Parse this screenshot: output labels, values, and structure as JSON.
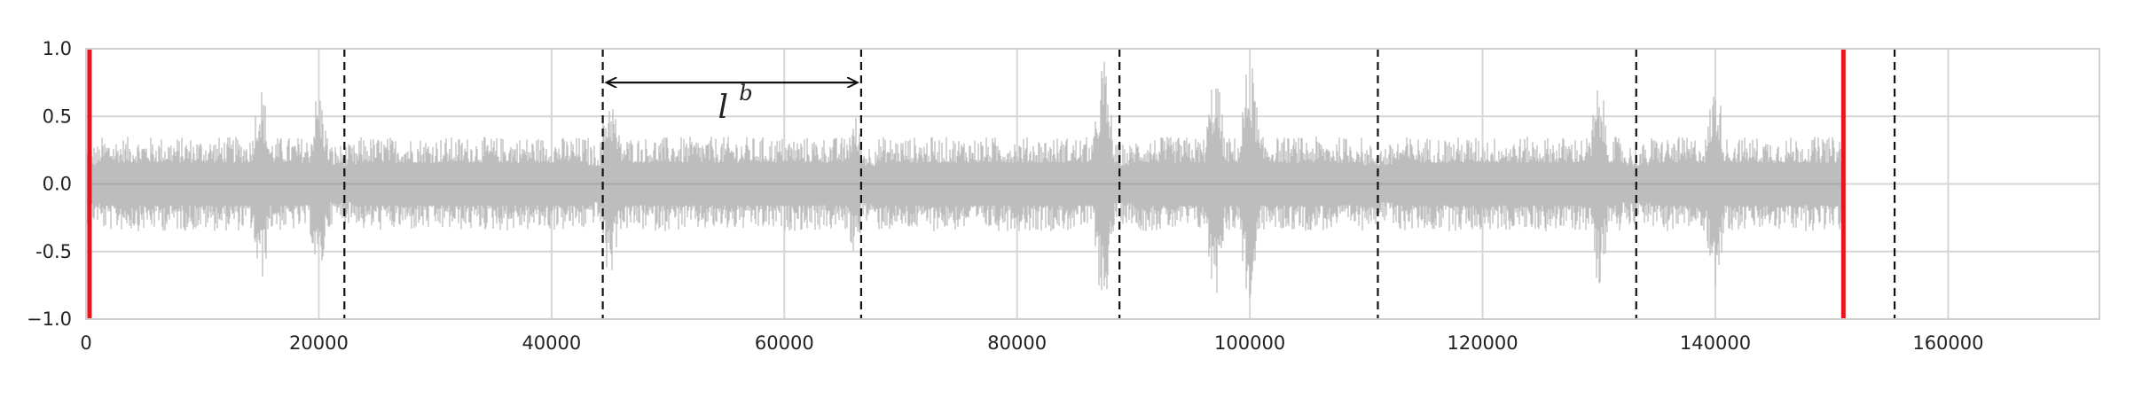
{
  "chart_data": {
    "type": "line",
    "title": "",
    "xlabel": "",
    "ylabel": "",
    "xlim": [
      0,
      173000
    ],
    "ylim": [
      -1.0,
      1.0
    ],
    "grid": true,
    "x_ticks": [
      0,
      20000,
      40000,
      60000,
      80000,
      100000,
      120000,
      140000,
      160000
    ],
    "x_tick_labels": [
      "0",
      "20000",
      "40000",
      "60000",
      "80000",
      "100000",
      "120000",
      "140000",
      "160000"
    ],
    "y_ticks": [
      1.0,
      0.5,
      0.0,
      -0.5,
      -1.0
    ],
    "y_tick_labels": [
      "1.0",
      "0.5",
      "0.0",
      "-0.5",
      "−1.0"
    ],
    "signal": {
      "color": "#bdbdbd",
      "x_range": [
        0,
        151000
      ],
      "typical_amplitude": 0.35,
      "peak_amplitude": 1.0,
      "bursts": [
        {
          "x": 15000,
          "amp": 0.75
        },
        {
          "x": 20000,
          "amp": 0.72
        },
        {
          "x": 45000,
          "amp": 0.85
        },
        {
          "x": 66000,
          "amp": 0.62
        },
        {
          "x": 87500,
          "amp": 1.0
        },
        {
          "x": 97000,
          "amp": 0.85
        },
        {
          "x": 100000,
          "amp": 0.95
        },
        {
          "x": 130000,
          "amp": 0.75
        },
        {
          "x": 140000,
          "amp": 0.78
        }
      ]
    },
    "red_lines": {
      "color": "#e8141b",
      "x": [
        300,
        151000
      ]
    },
    "dashed_lines": {
      "color": "#111111",
      "x": [
        22200,
        44400,
        66600,
        88800,
        111000,
        133200,
        155400
      ]
    },
    "annotation": {
      "text": "l",
      "superscript": "b",
      "arrow_from": 44400,
      "arrow_to": 66600,
      "arrow_y": 0.75
    }
  }
}
